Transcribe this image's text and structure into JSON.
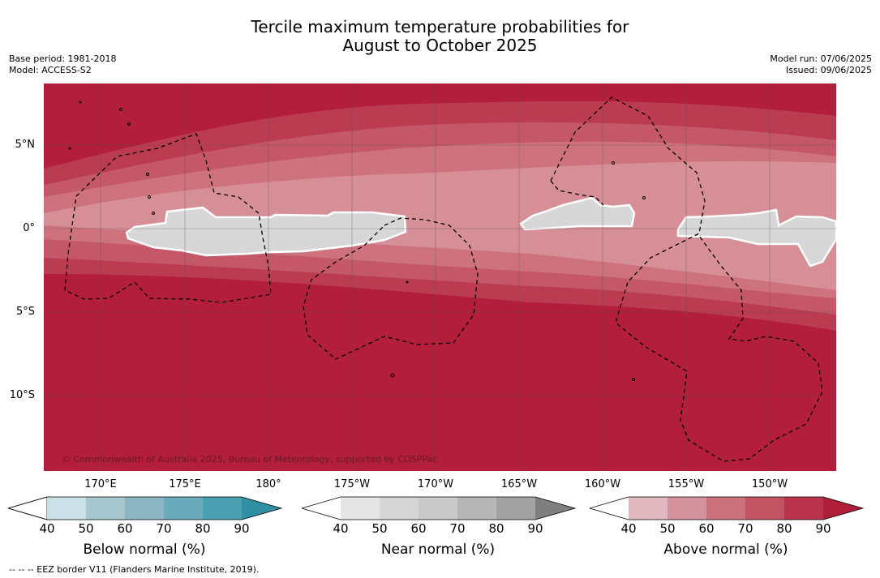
{
  "title_line1": "Tercile maximum temperature probabilities for",
  "title_line2": "August to October 2025",
  "meta_left": [
    "Base period: 1981-2018",
    "Model: ACCESS-S2"
  ],
  "meta_right": [
    "Model run: 07/06/2025",
    "Issued: 09/06/2025"
  ],
  "latitude_labels": [
    "5°N",
    "0°",
    "5°S",
    "10°S"
  ],
  "longitude_labels": [
    "170°E",
    "175°E",
    "180°",
    "175°W",
    "170°W",
    "165°W",
    "160°W",
    "155°W",
    "150°W"
  ],
  "copyright": "© Commonwealth of Australia 2025, Bureau of Meteorology, supported by COSPPac",
  "colorbars": [
    {
      "label": "Below normal (%)",
      "ticks": [
        "40",
        "50",
        "60",
        "70",
        "80",
        "90"
      ],
      "colors": [
        "#c9e1e7",
        "#a7c7ce",
        "#8bb6c2",
        "#6aabbb",
        "#4a9fb0",
        "#2f8fa3"
      ]
    },
    {
      "label": "Near normal (%)",
      "ticks": [
        "40",
        "50",
        "60",
        "70",
        "80",
        "90"
      ],
      "colors": [
        "#e5e5e5",
        "#d6d6d6",
        "#c9c9c9",
        "#b7b7b7",
        "#a2a2a2",
        "#7f7f7f"
      ]
    },
    {
      "label": "Above normal (%)",
      "ticks": [
        "40",
        "50",
        "60",
        "70",
        "80",
        "90"
      ],
      "colors": [
        "#e0b8bf",
        "#d4939c",
        "#cb727c",
        "#c15362",
        "#b8334b",
        "#b01e3a"
      ]
    }
  ],
  "footnote": "--  --  -- EEZ border V11 (Flanders Marine Institute, 2019).",
  "colors": {
    "above_90": "#b21e3b",
    "above_80": "#bb3b50",
    "above_70": "#c45868",
    "above_60": "#ce737d",
    "above_50": "#d68e97",
    "near_normal": "#d7d7d7"
  }
}
